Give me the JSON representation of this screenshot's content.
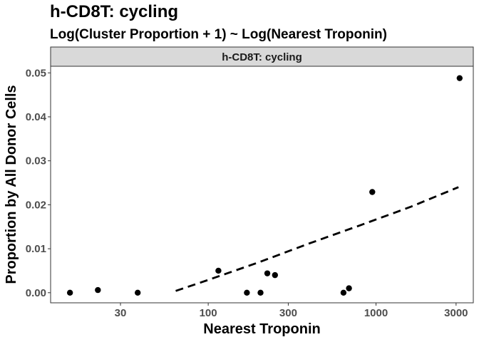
{
  "chart_data": {
    "type": "scatter",
    "title": "h-CD8T: cycling",
    "subtitle": "Log(Cluster Proportion + 1) ~ Log(Nearest Troponin)",
    "facet_label": "h-CD8T: cycling",
    "xlabel": "Nearest Troponin",
    "ylabel": "Proportion by All Donor Cells",
    "x_scale": "log10",
    "xlim": [
      11.5,
      3800
    ],
    "ylim": [
      -0.0023,
      0.0515
    ],
    "x_ticks": [
      30,
      100,
      300,
      1000,
      3000
    ],
    "x_tick_labels": [
      "30",
      "100",
      "300",
      "1000",
      "3000"
    ],
    "y_ticks": [
      0.0,
      0.01,
      0.02,
      0.03,
      0.04,
      0.05
    ],
    "y_tick_labels": [
      "0.00",
      "0.01",
      "0.02",
      "0.03",
      "0.04",
      "0.05"
    ],
    "grid": false,
    "points": [
      {
        "x": 15,
        "y": 0.0
      },
      {
        "x": 22,
        "y": 0.0006
      },
      {
        "x": 38,
        "y": 0.0
      },
      {
        "x": 115,
        "y": 0.005
      },
      {
        "x": 170,
        "y": 0.0
      },
      {
        "x": 205,
        "y": 0.0
      },
      {
        "x": 225,
        "y": 0.0044
      },
      {
        "x": 250,
        "y": 0.004
      },
      {
        "x": 640,
        "y": 0.0
      },
      {
        "x": 690,
        "y": 0.001
      },
      {
        "x": 950,
        "y": 0.0229
      },
      {
        "x": 3150,
        "y": 0.0488
      }
    ],
    "trend_line": {
      "style": "dashed",
      "x": [
        64,
        100,
        200,
        400,
        800,
        1600,
        3100
      ],
      "y": [
        0.0004,
        0.0029,
        0.0069,
        0.0112,
        0.0153,
        0.0195,
        0.024
      ]
    }
  }
}
